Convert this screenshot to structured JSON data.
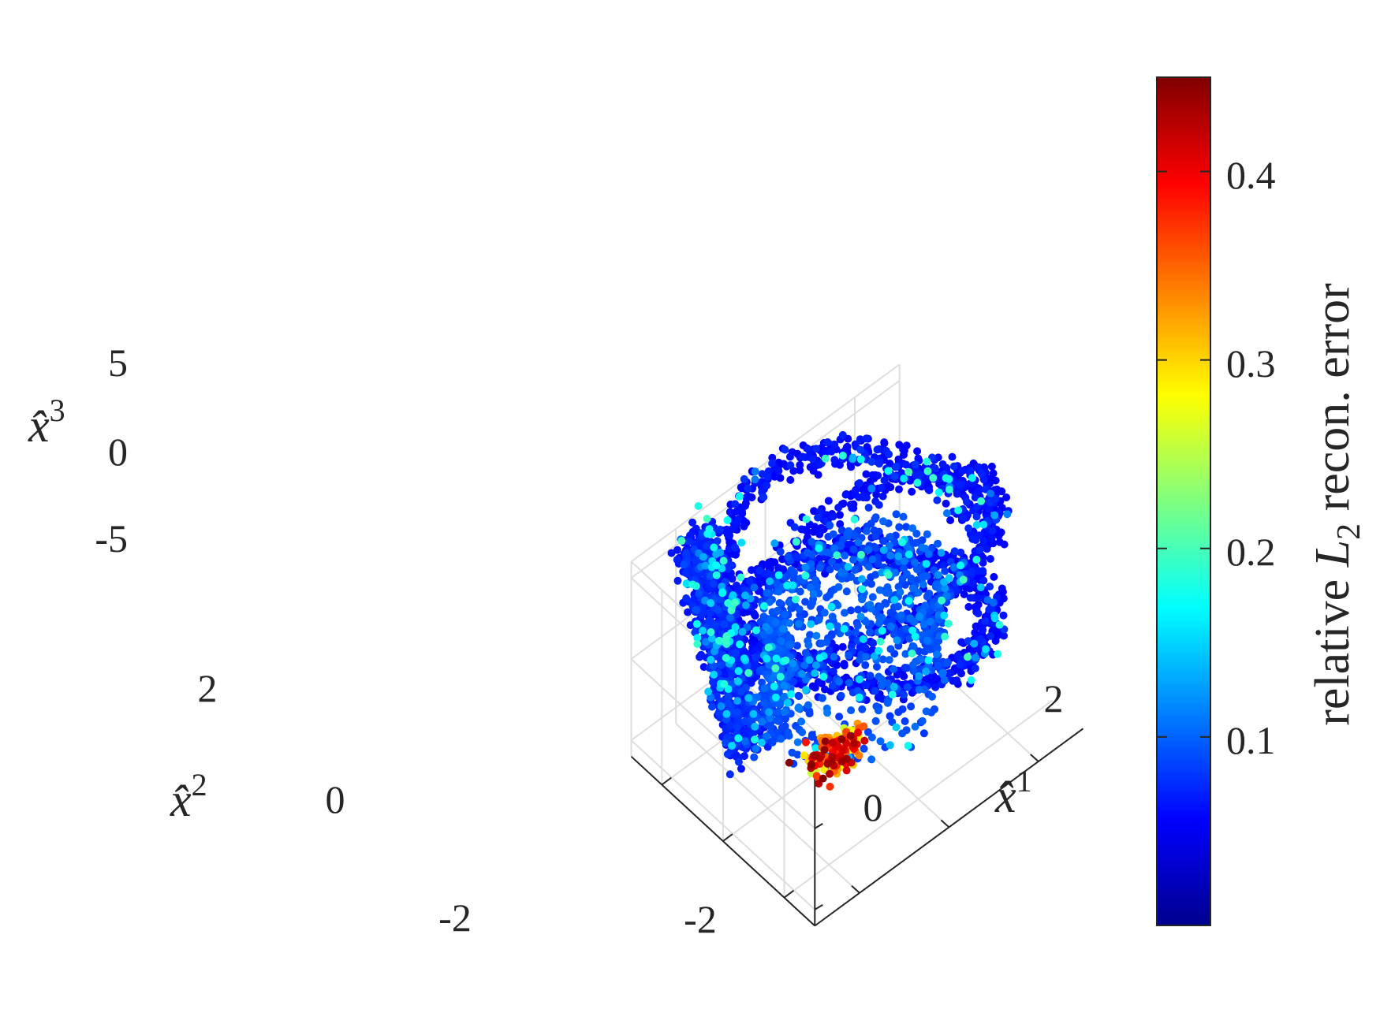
{
  "chart_data": {
    "type": "scatter",
    "projection": "3d",
    "axes": {
      "x1": {
        "label": "x̂",
        "superscript": "1",
        "ticks": [
          "-2",
          "0",
          "2"
        ],
        "tick_values": [
          -2,
          0,
          2
        ],
        "range": [
          -3,
          3
        ]
      },
      "x2": {
        "label": "x̂",
        "superscript": "2",
        "ticks": [
          "-2",
          "0",
          "2"
        ],
        "tick_values": [
          -2,
          0,
          2
        ],
        "range": [
          -3,
          3
        ]
      },
      "x3": {
        "label": "x̂",
        "superscript": "3",
        "ticks": [
          "-5",
          "0",
          "5"
        ],
        "tick_values": [
          -5,
          0,
          5
        ],
        "range": [
          -6,
          6
        ]
      }
    },
    "grid": true,
    "colormap": "jet",
    "colorbar": {
      "label_prefix": "relative ",
      "label_var": "L",
      "label_sub": "2",
      "label_suffix": " recon.  error",
      "ticks": [
        "0.1",
        "0.2",
        "0.3",
        "0.4"
      ],
      "tick_values": [
        0.1,
        0.2,
        0.3,
        0.4
      ],
      "range": [
        0.0,
        0.45
      ],
      "location": "right"
    },
    "series": [
      {
        "shape": "outer ring",
        "center": [
          0.2,
          0.3
        ],
        "radius": 2.5,
        "x3_range": [
          -2,
          6
        ],
        "turns": 2.3,
        "error_mean": 0.05
      },
      {
        "shape": "inner ring",
        "center": [
          0.1,
          0.2
        ],
        "radius": 1.6,
        "x3_range": [
          -4,
          3
        ],
        "turns": 1.5,
        "error_mean": 0.08
      },
      {
        "shape": "left sheet",
        "x1_range": [
          -2.8,
          -1.5
        ],
        "x2_range": [
          0,
          2.6
        ],
        "x3_range": [
          -5,
          6
        ],
        "error_mean": 0.06
      },
      {
        "shape": "high-error cluster",
        "center": [
          -0.6,
          -0.2,
          -5
        ],
        "error_range": [
          0.25,
          0.45
        ]
      }
    ]
  }
}
